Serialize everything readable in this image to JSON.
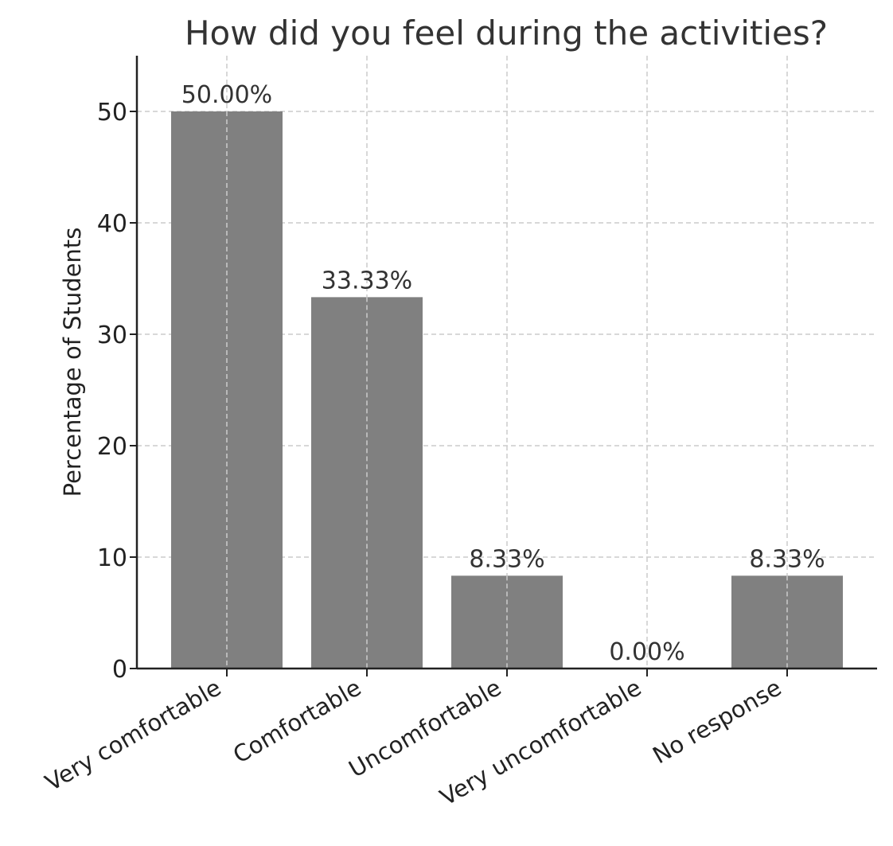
{
  "chart_data": {
    "type": "bar",
    "title": "How did you feel during the activities?",
    "xlabel": "",
    "ylabel": "Percentage of Students",
    "categories": [
      "Very comfortable",
      "Comfortable",
      "Uncomfortable",
      "Very uncomfortable",
      "No response"
    ],
    "values": [
      50.0,
      33.33,
      8.33,
      0.0,
      8.33
    ],
    "value_labels": [
      "50.00%",
      "33.33%",
      "8.33%",
      "0.00%",
      "8.33%"
    ],
    "ylim": [
      0,
      55
    ],
    "yticks": [
      0,
      10,
      20,
      30,
      40,
      50
    ],
    "grid": true,
    "bar_color": "#808080"
  }
}
